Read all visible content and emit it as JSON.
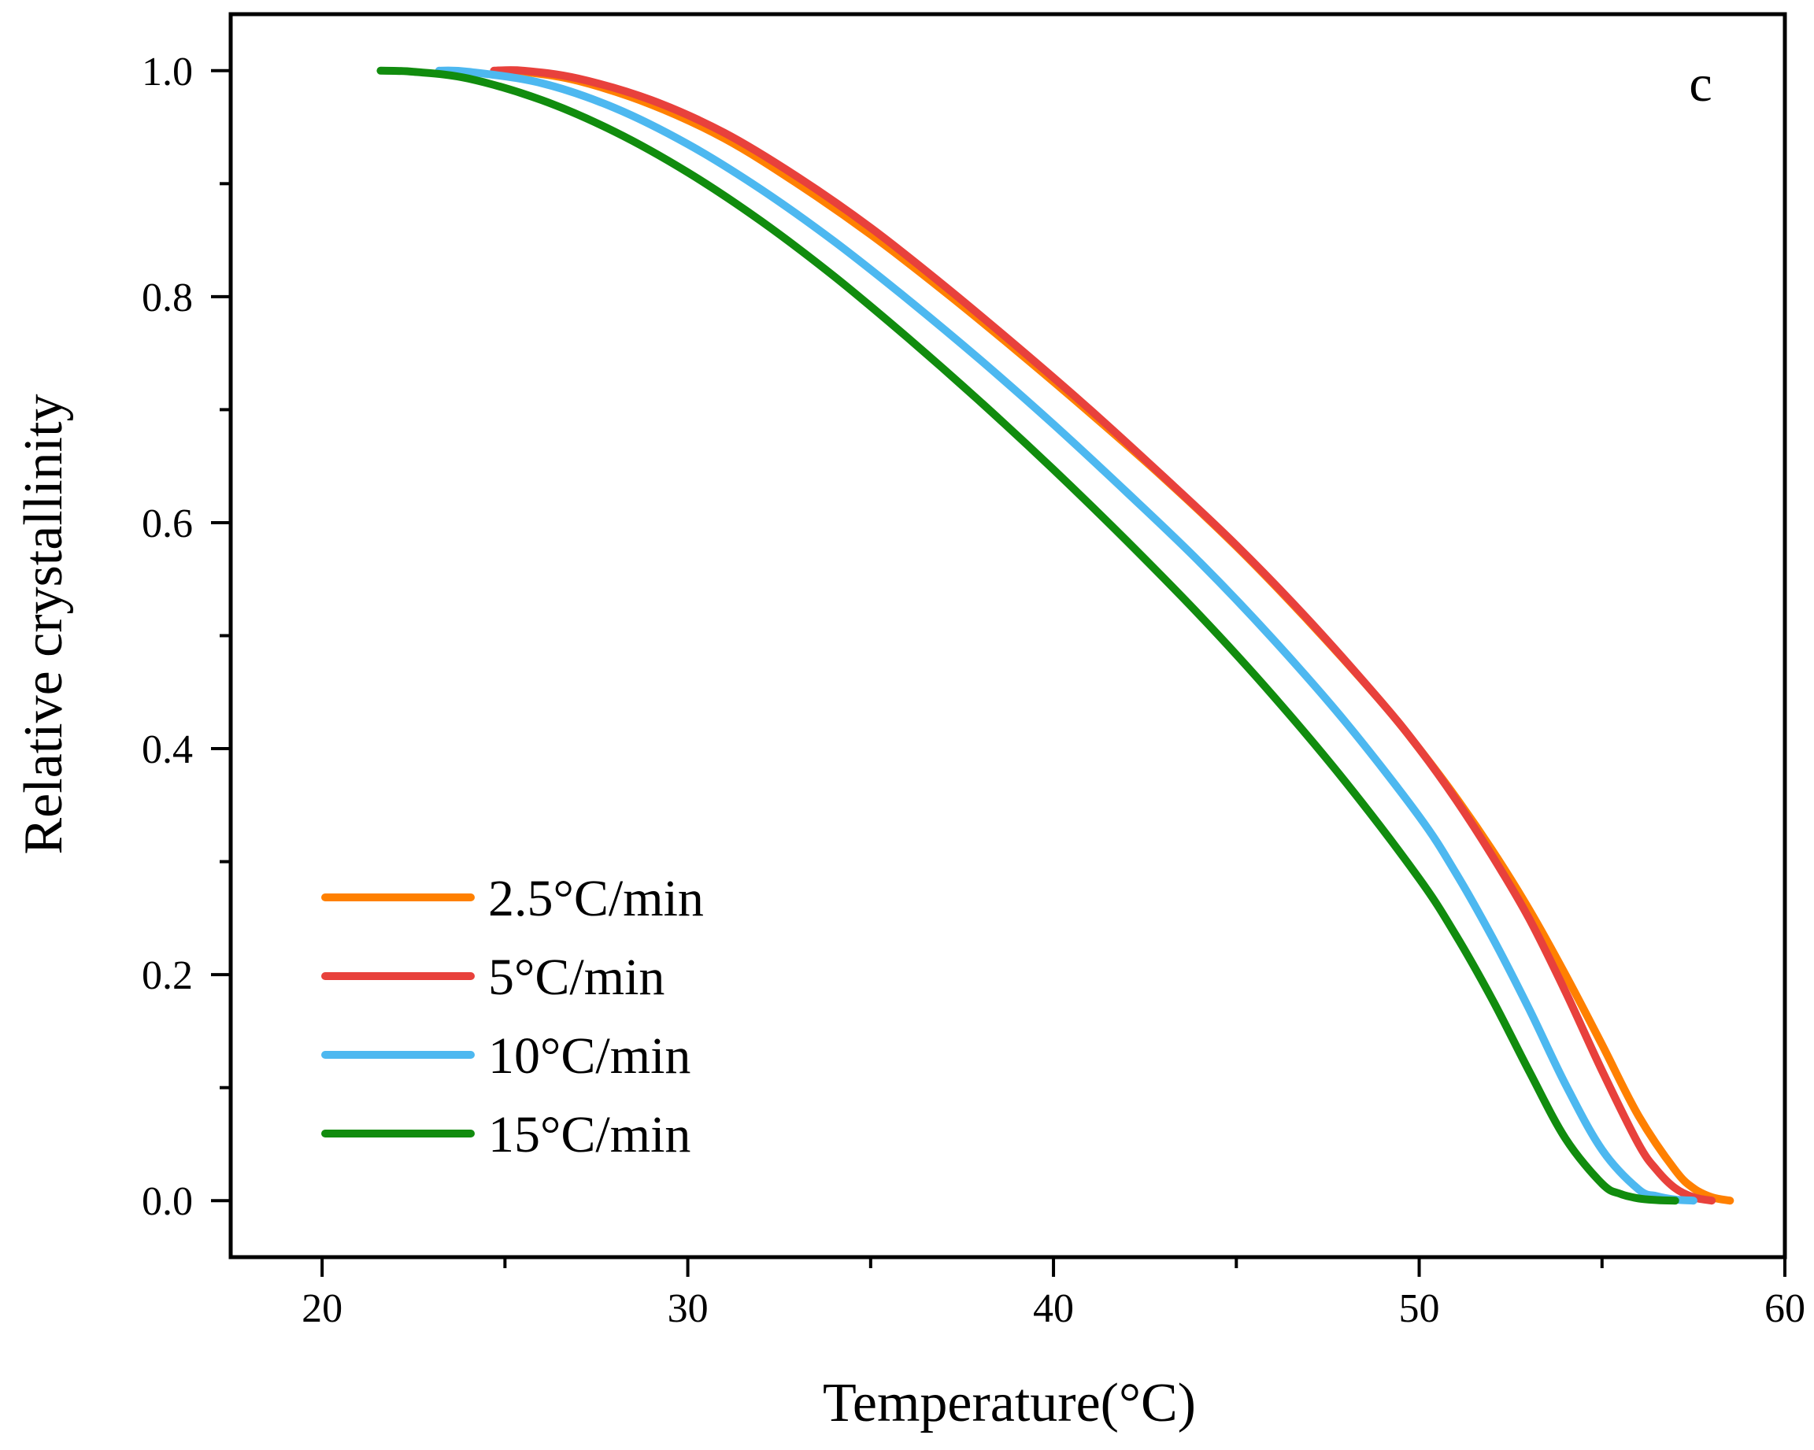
{
  "chart_data": {
    "type": "line",
    "title": "",
    "panel_label": "c",
    "xlabel": "Temperature(°C)",
    "ylabel": "Relative crystallinity",
    "xlim": [
      17.5,
      60
    ],
    "ylim": [
      -0.05,
      1.05
    ],
    "x_ticks": [
      20,
      30,
      40,
      50,
      60
    ],
    "x_tick_labels": [
      "20",
      "30",
      "40",
      "50",
      "60"
    ],
    "x_minor_ticks": [
      25,
      35,
      45,
      55
    ],
    "y_ticks": [
      0.0,
      0.2,
      0.4,
      0.6,
      0.8,
      1.0
    ],
    "y_tick_labels": [
      "0.0",
      "0.2",
      "0.4",
      "0.6",
      "0.8",
      "1.0"
    ],
    "y_minor_ticks": [
      0.1,
      0.3,
      0.5,
      0.7,
      0.9
    ],
    "grid": false,
    "legend_position": "bottom-left",
    "series": [
      {
        "name": "2.5°C/min",
        "color": "#ff8000",
        "x": [
          24.8,
          25.5,
          27,
          29,
          31,
          33,
          35,
          37,
          39,
          41,
          43,
          45,
          47,
          49,
          50,
          51,
          52,
          53,
          54,
          55,
          56,
          57,
          57.5,
          58,
          58.5
        ],
        "y": [
          1.0,
          0.999,
          0.991,
          0.97,
          0.94,
          0.9,
          0.855,
          0.805,
          0.752,
          0.697,
          0.64,
          0.579,
          0.512,
          0.44,
          0.4,
          0.357,
          0.31,
          0.258,
          0.2,
          0.138,
          0.075,
          0.027,
          0.011,
          0.003,
          0.0
        ]
      },
      {
        "name": "5°C/min",
        "color": "#e8413c",
        "x": [
          24.7,
          25.5,
          27,
          29,
          31,
          33,
          35,
          37,
          39,
          41,
          43,
          45,
          47,
          49,
          50,
          51,
          52,
          53,
          54,
          55,
          56,
          56.5,
          57,
          57.5,
          58
        ],
        "y": [
          1.0,
          1.0,
          0.993,
          0.974,
          0.945,
          0.906,
          0.861,
          0.81,
          0.756,
          0.7,
          0.641,
          0.58,
          0.513,
          0.44,
          0.4,
          0.355,
          0.305,
          0.25,
          0.185,
          0.115,
          0.05,
          0.027,
          0.011,
          0.003,
          0.0
        ]
      },
      {
        "name": "10°C/min",
        "color": "#4db8f0",
        "x": [
          23.2,
          24,
          26,
          28,
          30,
          32,
          34,
          36,
          38,
          40,
          42,
          44,
          46,
          48,
          50,
          51,
          52,
          53,
          54,
          55,
          56,
          56.5,
          57,
          57.5
        ],
        "y": [
          1.0,
          0.999,
          0.989,
          0.967,
          0.935,
          0.895,
          0.849,
          0.798,
          0.744,
          0.687,
          0.627,
          0.565,
          0.497,
          0.423,
          0.34,
          0.29,
          0.233,
          0.17,
          0.103,
          0.045,
          0.01,
          0.004,
          0.001,
          0.0
        ]
      },
      {
        "name": "15°C/min",
        "color": "#118c0e",
        "x": [
          21.6,
          22.5,
          24,
          26,
          28,
          30,
          32,
          34,
          36,
          38,
          40,
          42,
          44,
          46,
          48,
          50,
          51,
          52,
          53,
          54,
          55,
          55.5,
          56,
          56.5,
          57
        ],
        "y": [
          1.0,
          0.999,
          0.993,
          0.974,
          0.946,
          0.91,
          0.867,
          0.818,
          0.764,
          0.707,
          0.647,
          0.584,
          0.518,
          0.447,
          0.37,
          0.285,
          0.235,
          0.178,
          0.115,
          0.055,
          0.015,
          0.006,
          0.002,
          0.0005,
          0.0
        ]
      }
    ]
  }
}
